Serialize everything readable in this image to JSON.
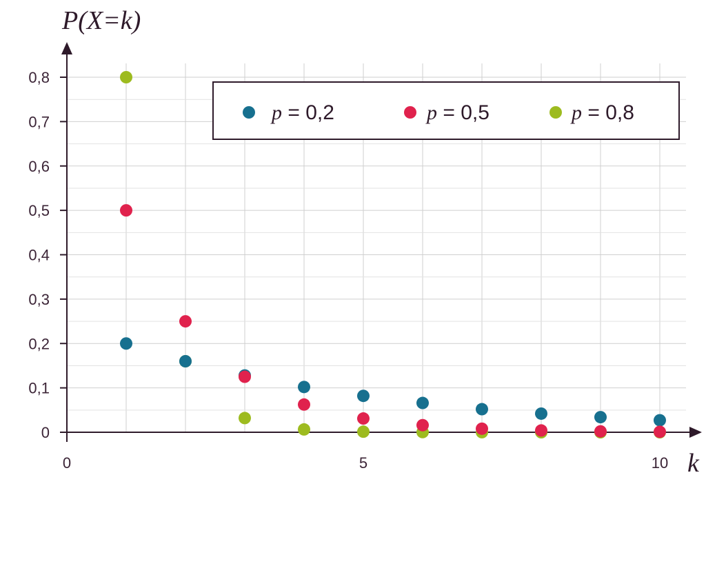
{
  "chart_data": {
    "type": "scatter",
    "ylabel": "P(X=k)",
    "xlabel": "k",
    "xlim": [
      0,
      10.5
    ],
    "ylim": [
      0,
      0.85
    ],
    "x_ticks": [
      {
        "value": 0,
        "label": "0"
      },
      {
        "value": 5,
        "label": "5"
      },
      {
        "value": 10,
        "label": "10"
      }
    ],
    "y_ticks": [
      {
        "value": 0,
        "label": "0"
      },
      {
        "value": 0.1,
        "label": "0,1"
      },
      {
        "value": 0.2,
        "label": "0,2"
      },
      {
        "value": 0.3,
        "label": "0,3"
      },
      {
        "value": 0.4,
        "label": "0,4"
      },
      {
        "value": 0.5,
        "label": "0,5"
      },
      {
        "value": 0.6,
        "label": "0,6"
      },
      {
        "value": 0.7,
        "label": "0,7"
      },
      {
        "value": 0.8,
        "label": "0,8"
      }
    ],
    "grid": true,
    "legend_position": "top-right",
    "x": [
      1,
      2,
      3,
      4,
      5,
      6,
      7,
      8,
      9,
      10
    ],
    "series": [
      {
        "name": "p = 0,2",
        "color": "#17708f",
        "values": [
          0.2,
          0.16,
          0.128,
          0.102,
          0.082,
          0.066,
          0.052,
          0.042,
          0.034,
          0.027
        ]
      },
      {
        "name": "p = 0,5",
        "color": "#e0224d",
        "values": [
          0.5,
          0.25,
          0.125,
          0.0625,
          0.031,
          0.016,
          0.008,
          0.004,
          0.002,
          0.001
        ]
      },
      {
        "name": "p = 0,8",
        "color": "#9dbb1f",
        "values": [
          0.8,
          0.16,
          0.032,
          0.0064,
          0.0013,
          0.0003,
          0.0001,
          0.0,
          0.0,
          0.0
        ]
      }
    ]
  },
  "legend": {
    "items": [
      {
        "var": "p",
        "rest": " = 0,2"
      },
      {
        "var": "p",
        "rest": " = 0,5"
      },
      {
        "var": "p",
        "rest": " = 0,8"
      }
    ]
  }
}
